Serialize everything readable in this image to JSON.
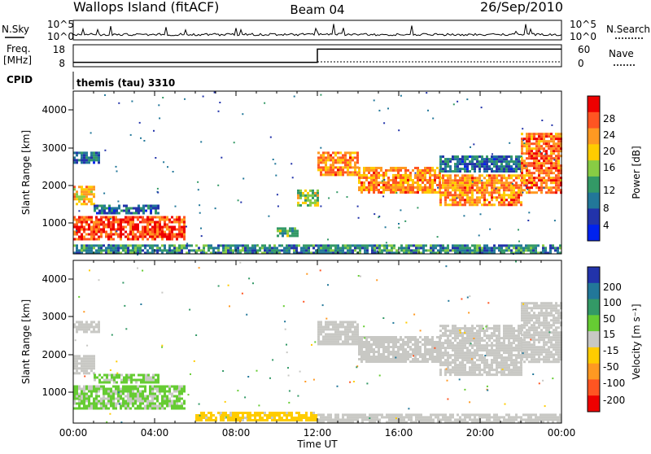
{
  "header": {
    "site": "Wallops Island (fitACF)",
    "beam": "Beam 04",
    "date": "26/Sep/2010"
  },
  "noise_panel": {
    "left_label": "N.Sky",
    "right_label": "N.Search",
    "left_ticks": [
      "10^5",
      "10^0"
    ],
    "right_ticks": [
      "10^5",
      "10^0"
    ]
  },
  "freq_panel": {
    "left_label_1": "Freq.",
    "left_label_2": "[MHz]",
    "right_label": "Nave",
    "left_ticks": [
      "18",
      "8"
    ],
    "right_ticks": [
      "60",
      "0"
    ]
  },
  "cpid_panel": {
    "label": "CPID",
    "value": "themis (tau) 3310"
  },
  "power_panel": {
    "ylabel": "Slant Range [km]",
    "yticks": [
      "4000",
      "3000",
      "2000",
      "1000"
    ],
    "colorbar_label": "Power [dB]",
    "colorbar_ticks": [
      "28",
      "24",
      "20",
      "16",
      "12",
      "8",
      "4"
    ],
    "colorbar_colors": [
      "#ee0000",
      "#ff5522",
      "#ff9922",
      "#ffcc00",
      "#88cc44",
      "#339966",
      "#227799",
      "#2233aa",
      "#0022ee"
    ]
  },
  "velocity_panel": {
    "ylabel": "Slant Range [km]",
    "yticks": [
      "4000",
      "3000",
      "2000",
      "1000"
    ],
    "colorbar_label": "Velocity [m s⁻¹]",
    "colorbar_ticks": [
      "200",
      "100",
      "50",
      "15",
      "-15",
      "-50",
      "-100",
      "-200"
    ],
    "colorbar_colors": [
      "#2233aa",
      "#227799",
      "#339966",
      "#66cc33",
      "#c8c8c4",
      "#ffcc00",
      "#ff9922",
      "#ff5522",
      "#ee0000"
    ]
  },
  "time_axis": {
    "ticks": [
      "00:00",
      "04:00",
      "08:00",
      "12:00",
      "16:00",
      "20:00",
      "00:00"
    ],
    "label": "Time UT"
  },
  "chart_data": {
    "type": "heatmap",
    "x_unit": "hours UT",
    "xlim": [
      0,
      24
    ],
    "ylim": [
      200,
      4500
    ],
    "power_regions": [
      {
        "t0": 0.0,
        "t1": 1.3,
        "r0": 2600,
        "r1": 2900,
        "value": 8
      },
      {
        "t0": 0.0,
        "t1": 1.0,
        "r0": 1500,
        "r1": 2000,
        "value": 20
      },
      {
        "t0": 0.0,
        "t1": 5.5,
        "r0": 600,
        "r1": 1200,
        "value": 26
      },
      {
        "t0": 1.0,
        "t1": 4.2,
        "r0": 1300,
        "r1": 1500,
        "value": 8
      },
      {
        "t0": 10.0,
        "t1": 11.0,
        "r0": 650,
        "r1": 900,
        "value": 12
      },
      {
        "t0": 11.0,
        "t1": 12.0,
        "r0": 1500,
        "r1": 1900,
        "value": 16
      },
      {
        "t0": 12.0,
        "t1": 14.0,
        "r0": 2300,
        "r1": 2900,
        "value": 22
      },
      {
        "t0": 14.0,
        "t1": 18.0,
        "r0": 1800,
        "r1": 2500,
        "value": 22
      },
      {
        "t0": 18.0,
        "t1": 22.0,
        "r0": 1500,
        "r1": 2300,
        "value": 22
      },
      {
        "t0": 18.0,
        "t1": 22.0,
        "r0": 2400,
        "r1": 2800,
        "value": 8
      },
      {
        "t0": 22.0,
        "t1": 24.0,
        "r0": 1800,
        "r1": 3400,
        "value": 24
      },
      {
        "t0": 0.0,
        "t1": 24.0,
        "r0": 250,
        "r1": 450,
        "value": 10
      }
    ],
    "velocity_regions": [
      {
        "t0": 0.0,
        "t1": 1.3,
        "r0": 2600,
        "r1": 2900,
        "value": 0
      },
      {
        "t0": 0.0,
        "t1": 1.0,
        "r0": 1500,
        "r1": 2000,
        "value": 0
      },
      {
        "t0": 0.0,
        "t1": 5.5,
        "r0": 600,
        "r1": 1200,
        "value": 30
      },
      {
        "t0": 1.0,
        "t1": 4.2,
        "r0": 1300,
        "r1": 1500,
        "value": 30
      },
      {
        "t0": 12.0,
        "t1": 14.0,
        "r0": 2300,
        "r1": 2900,
        "value": 0
      },
      {
        "t0": 14.0,
        "t1": 18.0,
        "r0": 1800,
        "r1": 2500,
        "value": 0
      },
      {
        "t0": 18.0,
        "t1": 22.0,
        "r0": 1500,
        "r1": 2800,
        "value": 0
      },
      {
        "t0": 22.0,
        "t1": 24.0,
        "r0": 1800,
        "r1": 3400,
        "value": 0
      },
      {
        "t0": 6.0,
        "t1": 12.0,
        "r0": 250,
        "r1": 500,
        "value": -40
      },
      {
        "t0": 12.0,
        "t1": 24.0,
        "r0": 250,
        "r1": 450,
        "value": 0
      }
    ],
    "frequency": [
      {
        "t0": 0.0,
        "t1": 12.0,
        "value": 10
      },
      {
        "t0": 12.0,
        "t1": 24.0,
        "value": 16
      }
    ],
    "frequency_range": [
      8,
      18
    ],
    "nave": 0,
    "noise_sky_log10": 0.7
  }
}
